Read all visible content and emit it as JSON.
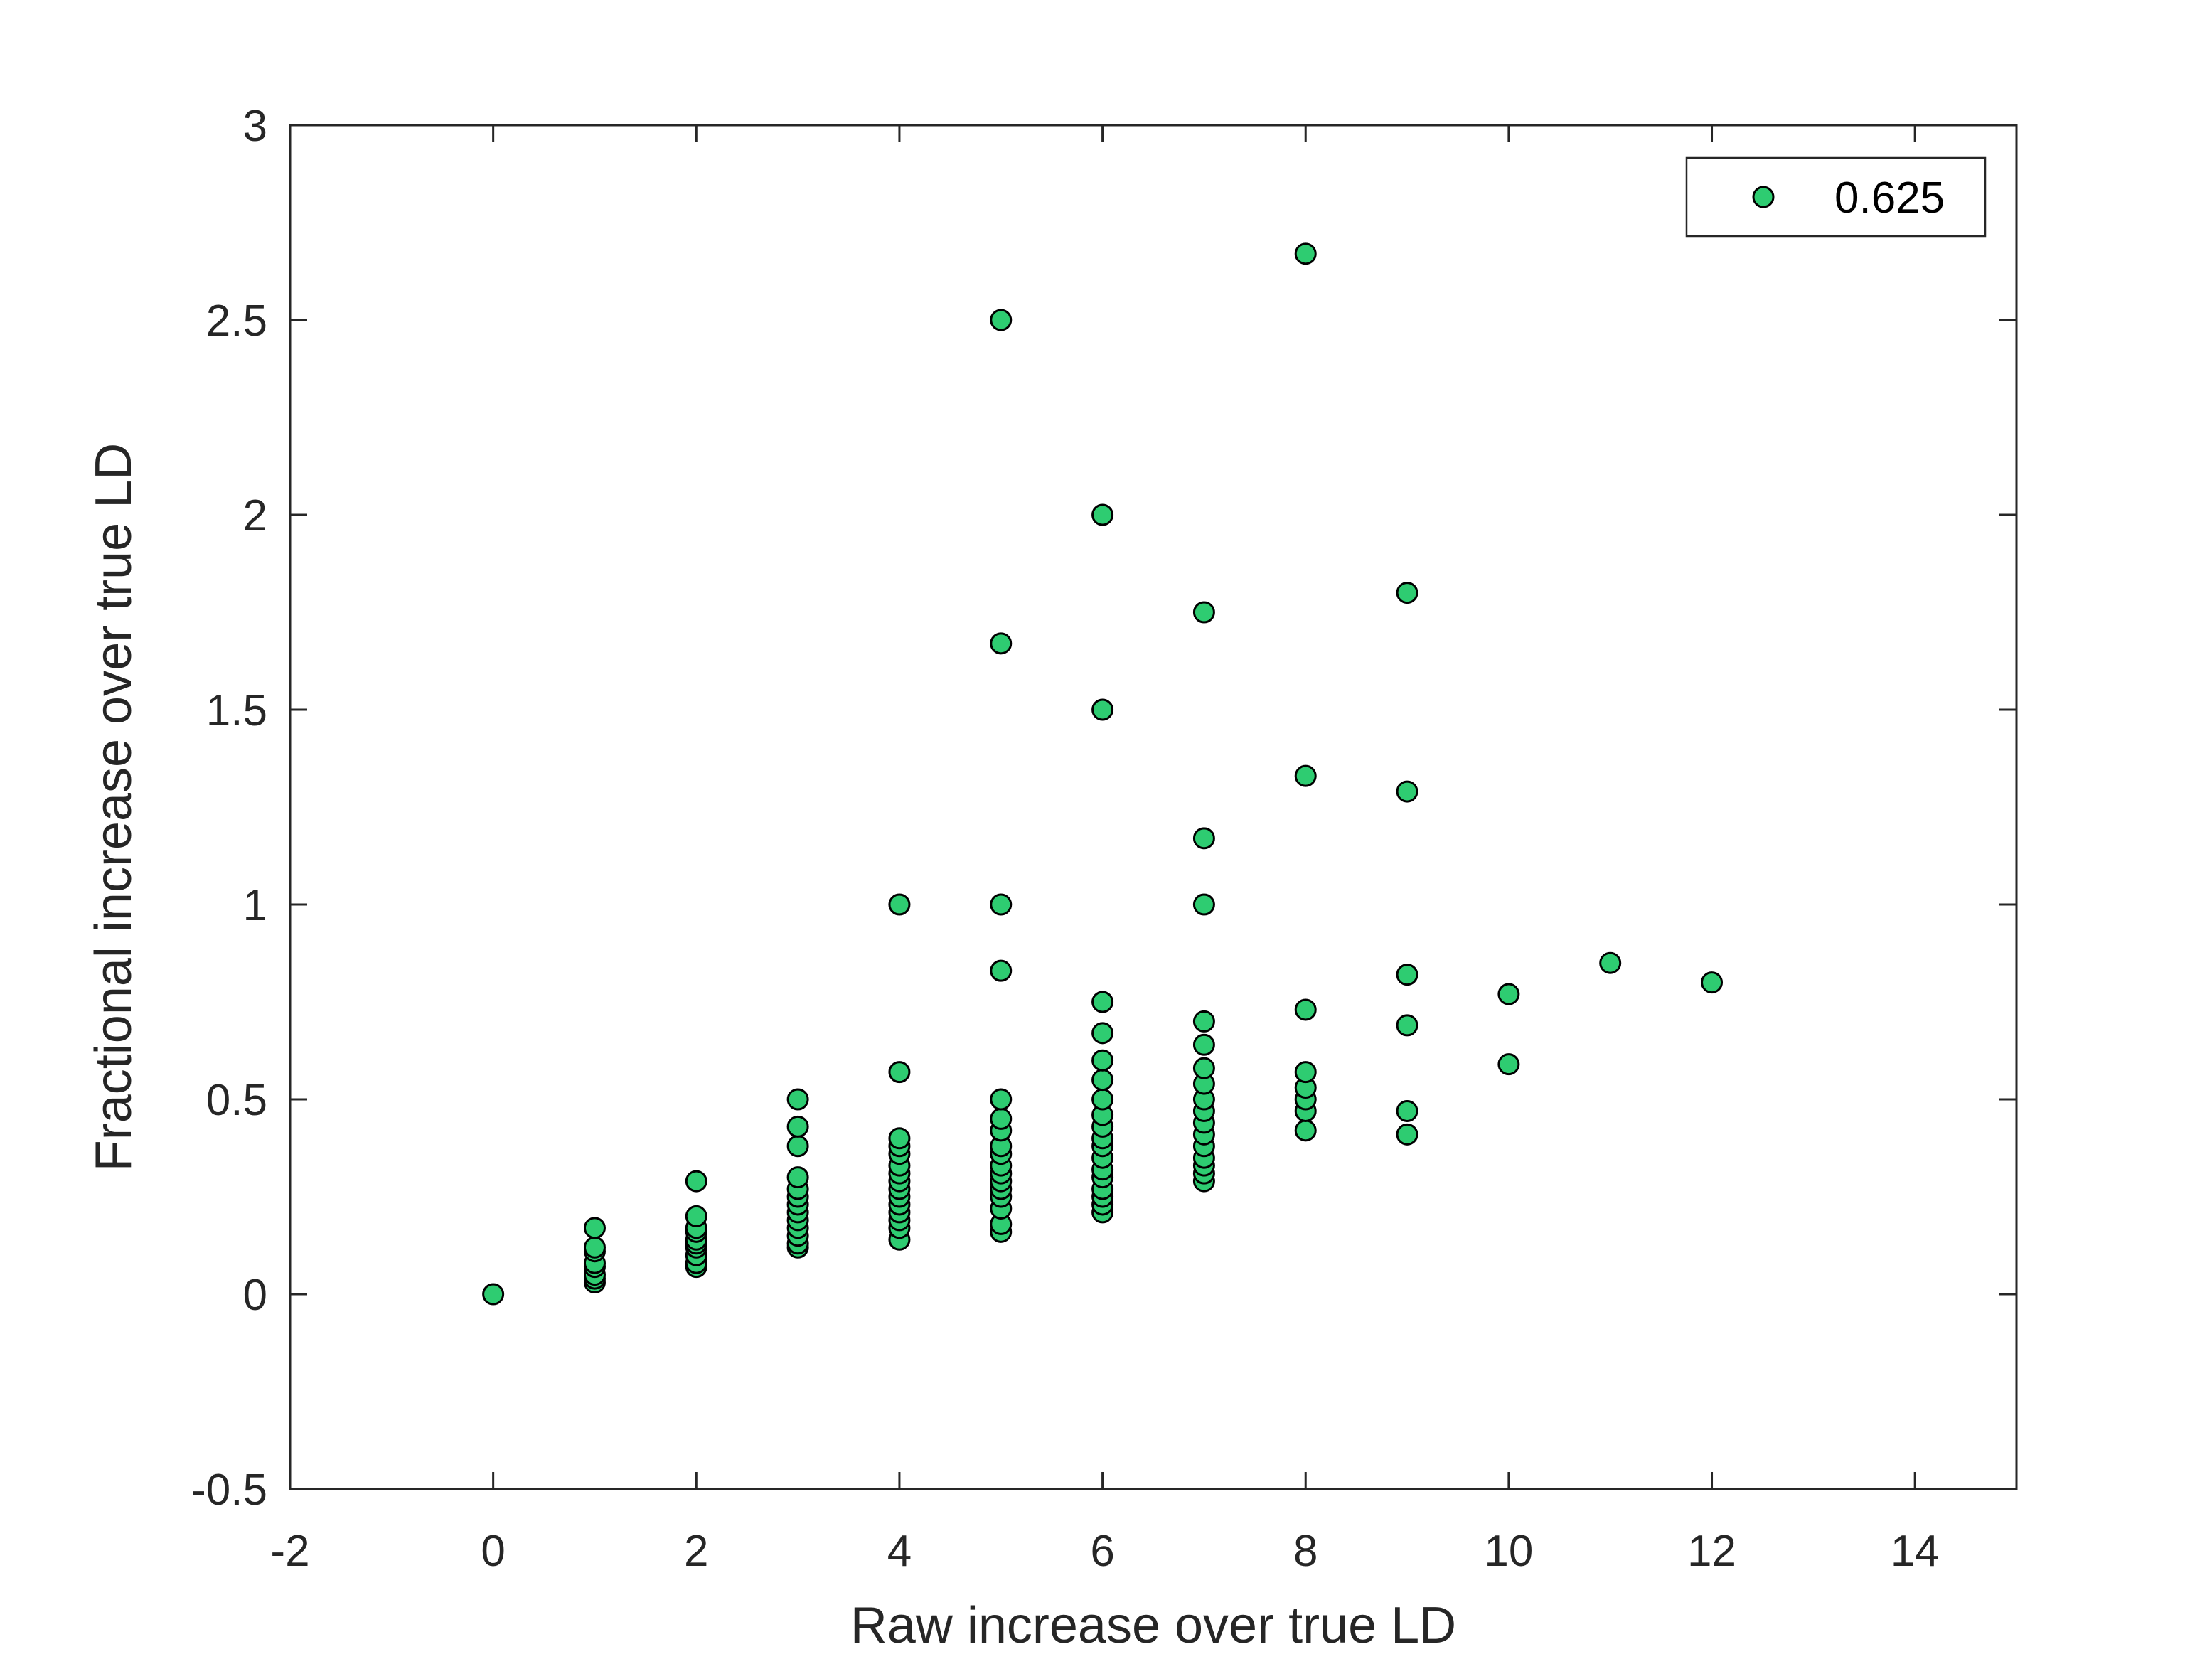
{
  "chart_data": {
    "type": "scatter",
    "title": "",
    "xlabel": "Raw increase over true LD",
    "ylabel": "Fractional increase over true LD",
    "xlim": [
      -2,
      15
    ],
    "ylim": [
      -0.5,
      3
    ],
    "xticks": [
      -2,
      0,
      2,
      4,
      6,
      8,
      10,
      12,
      14
    ],
    "yticks": [
      -0.5,
      0,
      0.5,
      1,
      1.5,
      2,
      2.5,
      3
    ],
    "xtick_labels": [
      "-2",
      "0",
      "2",
      "4",
      "6",
      "8",
      "10",
      "12",
      "14"
    ],
    "ytick_labels": [
      "-0.5",
      "0",
      "0.5",
      "1",
      "1.5",
      "2",
      "2.5",
      "3"
    ],
    "grid": false,
    "legend_position": "top-right",
    "series": [
      {
        "name": "0.625",
        "color": "#2ECC71",
        "edge_color": "#000000",
        "points": [
          [
            0,
            0
          ],
          [
            1,
            0.03
          ],
          [
            1,
            0.04
          ],
          [
            1,
            0.05
          ],
          [
            1,
            0.07
          ],
          [
            1,
            0.08
          ],
          [
            1,
            0.11
          ],
          [
            1,
            0.12
          ],
          [
            1,
            0.17
          ],
          [
            2,
            0.07
          ],
          [
            2,
            0.08
          ],
          [
            2,
            0.1
          ],
          [
            2,
            0.12
          ],
          [
            2,
            0.13
          ],
          [
            2,
            0.14
          ],
          [
            2,
            0.16
          ],
          [
            2,
            0.17
          ],
          [
            2,
            0.2
          ],
          [
            2,
            0.29
          ],
          [
            3,
            0.12
          ],
          [
            3,
            0.13
          ],
          [
            3,
            0.15
          ],
          [
            3,
            0.17
          ],
          [
            3,
            0.19
          ],
          [
            3,
            0.21
          ],
          [
            3,
            0.23
          ],
          [
            3,
            0.25
          ],
          [
            3,
            0.27
          ],
          [
            3,
            0.3
          ],
          [
            3,
            0.38
          ],
          [
            3,
            0.43
          ],
          [
            3,
            0.5
          ],
          [
            4,
            0.14
          ],
          [
            4,
            0.17
          ],
          [
            4,
            0.19
          ],
          [
            4,
            0.21
          ],
          [
            4,
            0.23
          ],
          [
            4,
            0.25
          ],
          [
            4,
            0.27
          ],
          [
            4,
            0.29
          ],
          [
            4,
            0.31
          ],
          [
            4,
            0.33
          ],
          [
            4,
            0.36
          ],
          [
            4,
            0.38
          ],
          [
            4,
            0.4
          ],
          [
            4,
            0.57
          ],
          [
            4,
            1.0
          ],
          [
            5,
            0.16
          ],
          [
            5,
            0.18
          ],
          [
            5,
            0.22
          ],
          [
            5,
            0.25
          ],
          [
            5,
            0.27
          ],
          [
            5,
            0.29
          ],
          [
            5,
            0.31
          ],
          [
            5,
            0.33
          ],
          [
            5,
            0.36
          ],
          [
            5,
            0.38
          ],
          [
            5,
            0.42
          ],
          [
            5,
            0.45
          ],
          [
            5,
            0.5
          ],
          [
            5,
            0.83
          ],
          [
            5,
            1.0
          ],
          [
            5,
            1.67
          ],
          [
            5,
            2.5
          ],
          [
            6,
            0.21
          ],
          [
            6,
            0.23
          ],
          [
            6,
            0.25
          ],
          [
            6,
            0.27
          ],
          [
            6,
            0.3
          ],
          [
            6,
            0.32
          ],
          [
            6,
            0.35
          ],
          [
            6,
            0.38
          ],
          [
            6,
            0.4
          ],
          [
            6,
            0.43
          ],
          [
            6,
            0.46
          ],
          [
            6,
            0.5
          ],
          [
            6,
            0.55
          ],
          [
            6,
            0.6
          ],
          [
            6,
            0.67
          ],
          [
            6,
            0.75
          ],
          [
            6,
            1.5
          ],
          [
            6,
            2.0
          ],
          [
            7,
            0.29
          ],
          [
            7,
            0.31
          ],
          [
            7,
            0.33
          ],
          [
            7,
            0.35
          ],
          [
            7,
            0.38
          ],
          [
            7,
            0.41
          ],
          [
            7,
            0.44
          ],
          [
            7,
            0.47
          ],
          [
            7,
            0.5
          ],
          [
            7,
            0.54
          ],
          [
            7,
            0.58
          ],
          [
            7,
            0.64
          ],
          [
            7,
            0.7
          ],
          [
            7,
            1.0
          ],
          [
            7,
            1.17
          ],
          [
            7,
            1.75
          ],
          [
            8,
            0.42
          ],
          [
            8,
            0.47
          ],
          [
            8,
            0.5
          ],
          [
            8,
            0.53
          ],
          [
            8,
            0.57
          ],
          [
            8,
            0.73
          ],
          [
            8,
            1.33
          ],
          [
            8,
            2.67
          ],
          [
            9,
            0.41
          ],
          [
            9,
            0.47
          ],
          [
            9,
            0.69
          ],
          [
            9,
            0.82
          ],
          [
            9,
            1.29
          ],
          [
            9,
            1.8
          ],
          [
            10,
            0.59
          ],
          [
            10,
            0.77
          ],
          [
            11,
            0.85
          ],
          [
            12,
            0.8
          ]
        ]
      }
    ]
  }
}
